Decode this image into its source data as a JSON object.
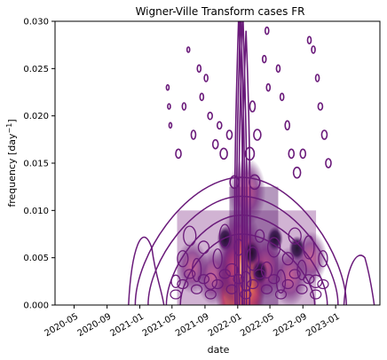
{
  "chart_data": {
    "type": "heatmap",
    "title": "Wigner-Ville Transform cases FR",
    "xlabel": "date",
    "ylabel": "frequency [day",
    "ylabel_superscript": "−1",
    "ylabel_suffix": "]",
    "xlim": [
      "2020-02-20",
      "2023-06-15"
    ],
    "ylim": [
      0,
      0.03
    ],
    "x_ticks": [
      "2020-05",
      "2020-09",
      "2021-01",
      "2021-05",
      "2021-09",
      "2022-01",
      "2022-05",
      "2022-09",
      "2023-01"
    ],
    "y_ticks": [
      "0.000",
      "0.005",
      "0.010",
      "0.015",
      "0.020",
      "0.025",
      "0.030"
    ],
    "grid": false,
    "colormap": "magma",
    "contour_color": "#6a1a7a",
    "colors": {
      "bright": "#fbe7b0",
      "orange": "#f07a4a",
      "magenta": "#b83c6b",
      "purple": "#5c1c6e",
      "dark": "#1a0b2e",
      "background": "#ffffff"
    },
    "intensity_peaks": [
      {
        "date": "2022-01-10",
        "freq": 0.0015,
        "level": 1.0
      },
      {
        "date": "2022-01-10",
        "freq": 0.006,
        "level": 0.7
      },
      {
        "date": "2022-01-25",
        "freq": 0.003,
        "level": 0.8
      },
      {
        "date": "2022-02-05",
        "freq": 0.012,
        "level": 0.5
      },
      {
        "date": "2021-12-20",
        "freq": 0.004,
        "level": 0.55
      },
      {
        "date": "2022-04-15",
        "freq": 0.004,
        "level": 0.45
      },
      {
        "date": "2022-07-15",
        "freq": 0.003,
        "level": 0.4
      },
      {
        "date": "2021-10-01",
        "freq": 0.003,
        "level": 0.35
      },
      {
        "date": "2021-07-15",
        "freq": 0.004,
        "level": 0.3
      },
      {
        "date": "2022-10-01",
        "freq": 0.005,
        "level": 0.3
      }
    ]
  }
}
